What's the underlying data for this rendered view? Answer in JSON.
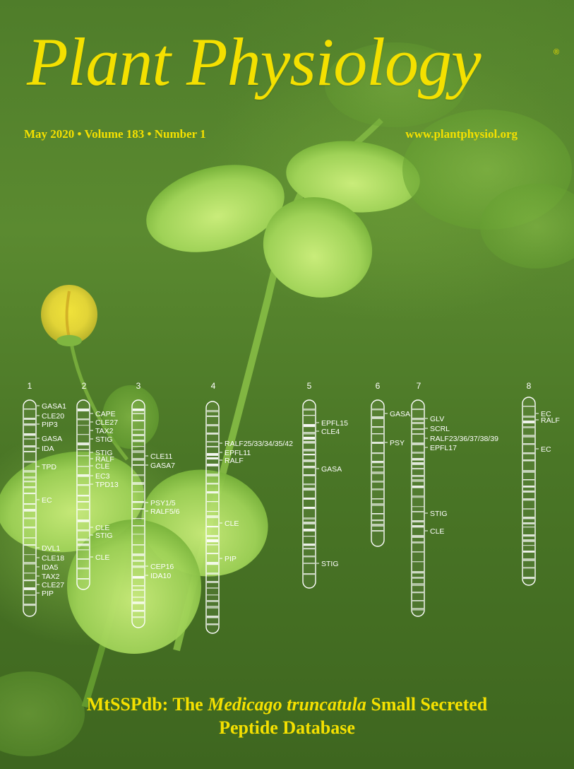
{
  "journal": {
    "title": "Plant Physiology",
    "registered_mark": "®",
    "issue_line": "May 2020 • Volume 183 • Number 1",
    "website": "www.plantphysiol.org"
  },
  "feature_article": {
    "part1": "MtSSPdb: The ",
    "part2_italic": "Medicago truncatula",
    "part3": " Small Secreted",
    "line2": "Peptide Database"
  },
  "chromosome_map": {
    "chromosomes": [
      {
        "number": "1",
        "labels": [
          "GASA1",
          "CLE20",
          "PIP3",
          "GASA",
          "IDA",
          "TPD",
          "EC",
          "DVL1",
          "CLE18",
          "IDA5",
          "TAX2",
          "CLE27",
          "PIP"
        ]
      },
      {
        "number": "2",
        "labels": [
          "CAPE",
          "CLE27",
          "TAX2",
          "STIG",
          "STIG",
          "RALF",
          "CLE",
          "EC3",
          "TPD13",
          "CLE",
          "STIG",
          "CLE"
        ]
      },
      {
        "number": "3",
        "labels": [
          "CLE11",
          "GASA7",
          "PSY1/5",
          "RALF5/6",
          "CEP16",
          "IDA10"
        ]
      },
      {
        "number": "4",
        "labels": [
          "RALF25/33/34/35/42",
          "EPFL11",
          "RALF",
          "CLE",
          "PIP"
        ]
      },
      {
        "number": "5",
        "labels": [
          "EPFL15",
          "CLE4",
          "GASA",
          "STIG"
        ]
      },
      {
        "number": "6",
        "labels": [
          "GASA",
          "PSY"
        ]
      },
      {
        "number": "7",
        "labels": [
          "GLV",
          "SCRL",
          "RALF23/36/37/38/39",
          "EPFL17",
          "STIG",
          "CLE"
        ]
      },
      {
        "number": "8",
        "labels": [
          "EC",
          "RALF",
          "EC"
        ]
      }
    ]
  },
  "colors": {
    "title_yellow": "#f4e000",
    "background_green": "#4f7d2a",
    "chromosome_white": "#ffffff"
  }
}
